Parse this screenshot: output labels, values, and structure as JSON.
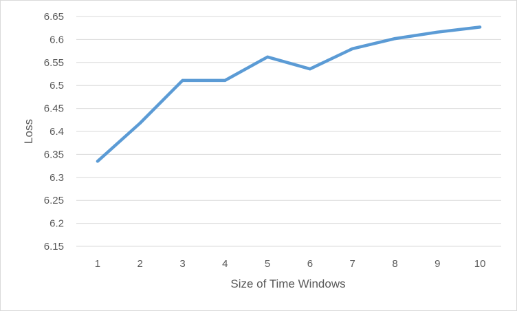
{
  "chart_data": {
    "type": "line",
    "title": "",
    "xlabel": "Size of Time Windows",
    "ylabel": "Loss",
    "x": [
      1,
      2,
      3,
      4,
      5,
      6,
      7,
      8,
      9,
      10
    ],
    "series": [
      {
        "values": [
          6.335,
          6.418,
          6.511,
          6.511,
          6.562,
          6.536,
          6.58,
          6.602,
          6.616,
          6.627
        ]
      }
    ],
    "ylim": [
      6.15,
      6.65
    ],
    "yticks": [
      "6.15",
      "6.2",
      "6.25",
      "6.3",
      "6.35",
      "6.4",
      "6.45",
      "6.5",
      "6.55",
      "6.6",
      "6.65"
    ],
    "xticks": [
      "1",
      "2",
      "3",
      "4",
      "5",
      "6",
      "7",
      "8",
      "9",
      "10"
    ],
    "grid": true,
    "legend": "none",
    "line_color": "#5B9BD5",
    "grid_color": "#d9d9d9"
  }
}
